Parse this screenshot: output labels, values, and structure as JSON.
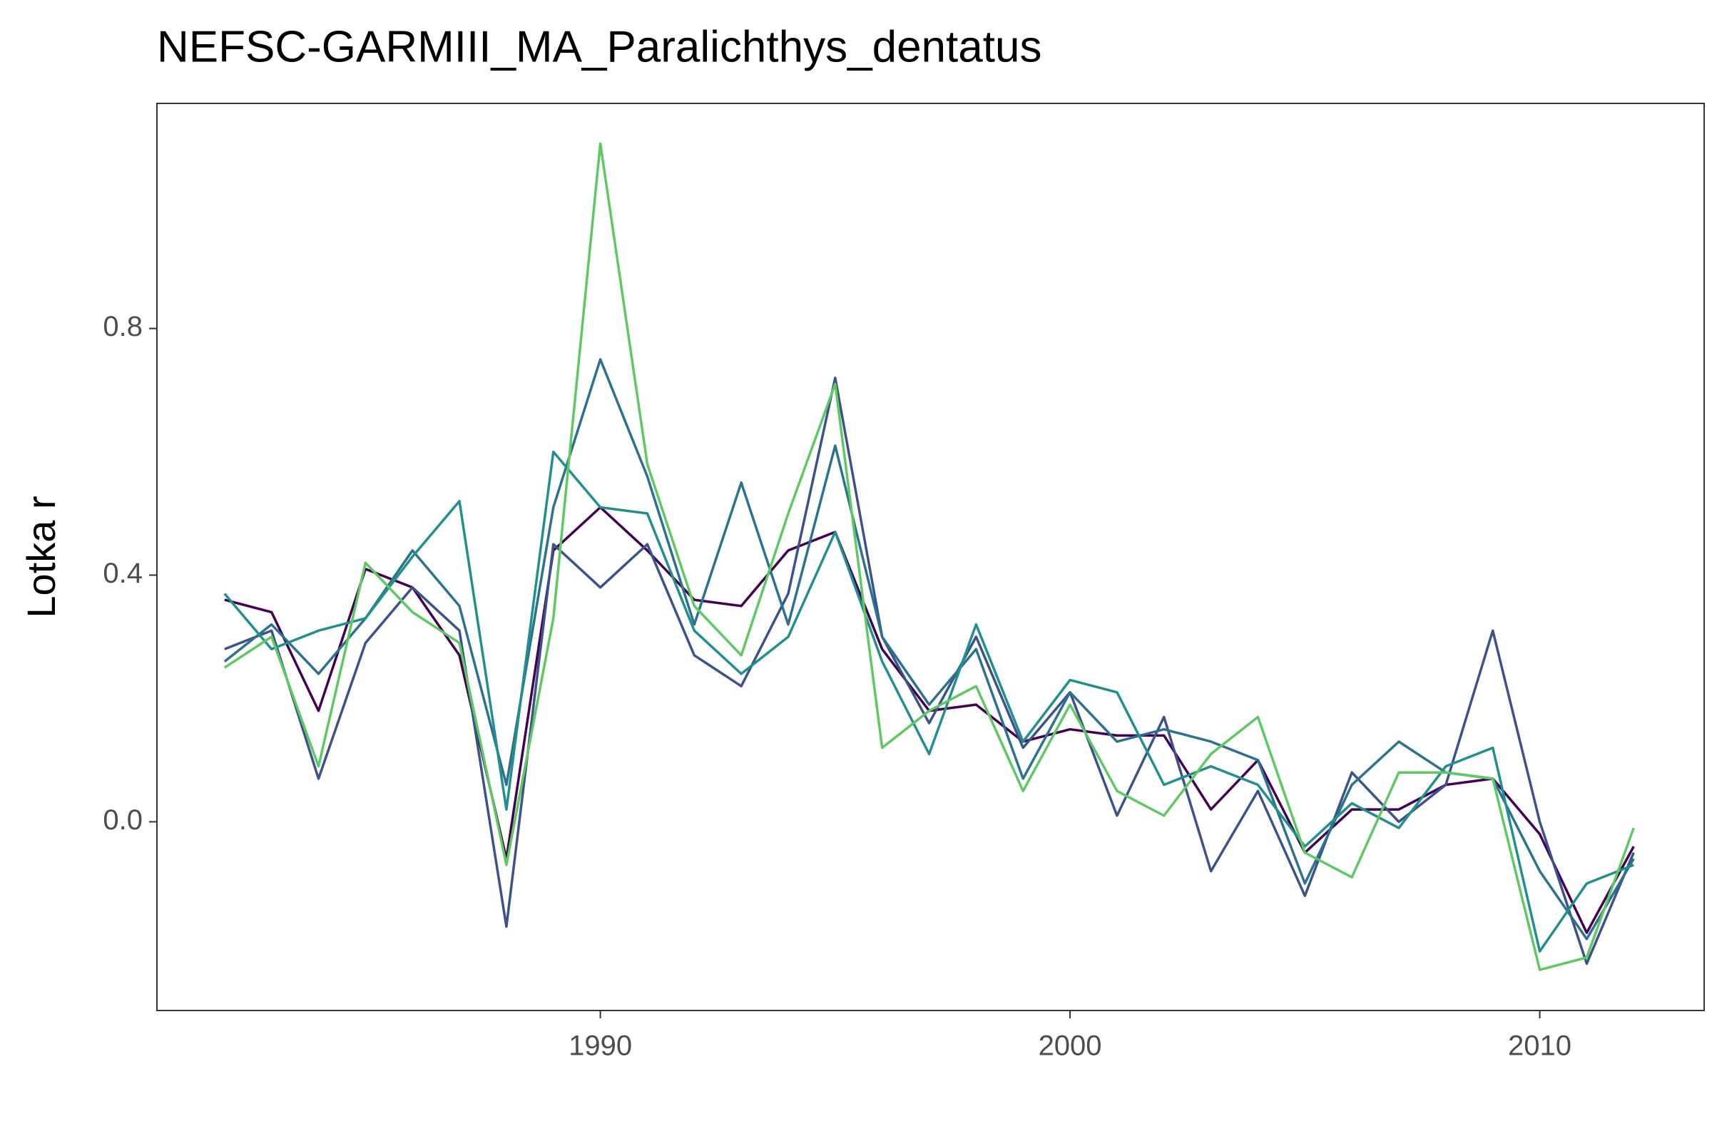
{
  "chart_data": {
    "type": "line",
    "title": "NEFSC-GARMIII_MA_Paralichthys_dentatus",
    "y_label": "Lotka r",
    "x": [
      1982,
      1983,
      1984,
      1985,
      1986,
      1987,
      1988,
      1989,
      1990,
      1991,
      1992,
      1993,
      1994,
      1995,
      1996,
      1997,
      1998,
      1999,
      2000,
      2001,
      2002,
      2003,
      2004,
      2005,
      2006,
      2007,
      2008,
      2009,
      2010,
      2011,
      2012
    ],
    "series": [
      {
        "color": "#440154",
        "values": [
          0.36,
          0.34,
          0.18,
          0.41,
          0.38,
          0.27,
          -0.06,
          0.44,
          0.51,
          0.44,
          0.36,
          0.35,
          0.44,
          0.47,
          0.28,
          0.18,
          0.19,
          0.13,
          0.15,
          0.14,
          0.14,
          0.02,
          0.1,
          -0.05,
          0.02,
          0.02,
          0.06,
          0.07,
          -0.02,
          -0.18,
          -0.04
        ]
      },
      {
        "color": "#3b528b",
        "values": [
          0.28,
          0.31,
          0.07,
          0.29,
          0.38,
          0.31,
          -0.17,
          0.45,
          0.38,
          0.45,
          0.27,
          0.22,
          0.37,
          0.72,
          0.3,
          0.16,
          0.3,
          0.12,
          0.21,
          0.01,
          0.17,
          -0.08,
          0.05,
          -0.12,
          0.08,
          0.0,
          0.06,
          0.31,
          0.0,
          -0.23,
          -0.05
        ]
      },
      {
        "color": "#2c728e",
        "values": [
          0.26,
          0.32,
          0.24,
          0.33,
          0.44,
          0.35,
          0.06,
          0.51,
          0.75,
          0.56,
          0.32,
          0.55,
          0.32,
          0.61,
          0.3,
          0.19,
          0.28,
          0.07,
          0.21,
          0.13,
          0.15,
          0.13,
          0.1,
          -0.1,
          0.06,
          0.13,
          0.08,
          0.07,
          -0.08,
          -0.19,
          -0.06
        ]
      },
      {
        "color": "#21908d",
        "values": [
          0.37,
          0.28,
          0.31,
          0.33,
          0.43,
          0.52,
          0.02,
          0.6,
          0.51,
          0.5,
          0.31,
          0.24,
          0.3,
          0.47,
          0.26,
          0.11,
          0.32,
          0.13,
          0.23,
          0.21,
          0.06,
          0.09,
          0.06,
          -0.04,
          0.03,
          -0.01,
          0.09,
          0.12,
          -0.21,
          -0.1,
          -0.07
        ]
      },
      {
        "color": "#5ec962",
        "values": [
          0.25,
          0.3,
          0.09,
          0.42,
          0.34,
          0.29,
          -0.07,
          0.33,
          1.1,
          0.58,
          0.35,
          0.27,
          0.5,
          0.71,
          0.12,
          0.18,
          0.22,
          0.05,
          0.19,
          0.05,
          0.01,
          0.11,
          0.17,
          -0.05,
          -0.09,
          0.08,
          0.08,
          0.07,
          -0.24,
          -0.22,
          -0.01
        ]
      }
    ],
    "xlim": [
      1980.56,
      2013.5
    ],
    "xticks": [
      1990,
      2000,
      2010
    ],
    "ylim": [
      -0.306,
      1.165
    ],
    "yticks": [
      {
        "value": 0,
        "label": "0.0"
      },
      0.4,
      0.8
    ]
  }
}
